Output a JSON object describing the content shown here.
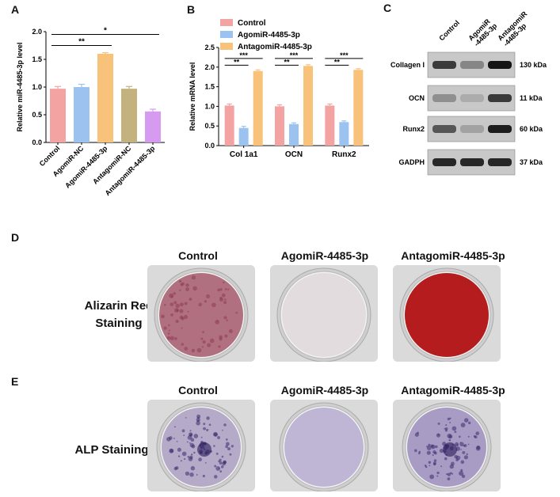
{
  "panels": {
    "a": "A",
    "b": "B",
    "c": "C",
    "d": "D",
    "e": "E"
  },
  "chart_a": {
    "chart_data": {
      "type": "bar",
      "categories": [
        "Control",
        "AgomiR-NC",
        "AgomiR-4485-3p",
        "AntagomiR-NC",
        "AntagomiR-4485-3p"
      ],
      "values": [
        0.97,
        1.0,
        1.6,
        0.97,
        0.56
      ],
      "errors": [
        0.04,
        0.05,
        0.02,
        0.04,
        0.04
      ],
      "colors": [
        "#f4a3a3",
        "#9cc3f0",
        "#f8c27a",
        "#c3b27d",
        "#d69af0"
      ],
      "ylabel": "Relative miR-4485-3p level",
      "ylim": [
        0,
        2.0
      ],
      "yticks": [
        "0.0",
        "0.5",
        "1.0",
        "1.5",
        "2.0"
      ],
      "annotations": [
        {
          "from": 0,
          "to": 2,
          "text": "**"
        },
        {
          "from": 0,
          "to": 4,
          "text": "*"
        }
      ]
    }
  },
  "chart_b": {
    "chart_data": {
      "type": "bar",
      "categories": [
        "Col 1a1",
        "OCN",
        "Runx2"
      ],
      "series": [
        {
          "name": "Control",
          "values": [
            1.02,
            1.0,
            1.02
          ],
          "errors": [
            0.04,
            0.04,
            0.04
          ],
          "color": "#f4a3a3"
        },
        {
          "name": "AgomiR-4485-3p",
          "values": [
            0.45,
            0.55,
            0.6
          ],
          "errors": [
            0.04,
            0.03,
            0.03
          ],
          "color": "#9cc3f0"
        },
        {
          "name": "AntagomiR-4485-3p",
          "values": [
            1.9,
            2.03,
            1.93
          ],
          "errors": [
            0.03,
            0.03,
            0.03
          ],
          "color": "#f8c27a"
        }
      ],
      "ylabel": "Relative mRNA level",
      "ylim": [
        0,
        2.5
      ],
      "yticks": [
        "0.0",
        "0.5",
        "1.0",
        "1.5",
        "2.0",
        "2.5"
      ],
      "legend": "top-left",
      "annotations": [
        {
          "group": 0,
          "from": 0,
          "to": 1,
          "text": "**"
        },
        {
          "group": 0,
          "from": 0,
          "to": 2,
          "text": "***"
        },
        {
          "group": 1,
          "from": 0,
          "to": 1,
          "text": "**"
        },
        {
          "group": 1,
          "from": 0,
          "to": 2,
          "text": "***"
        },
        {
          "group": 2,
          "from": 0,
          "to": 1,
          "text": "**"
        },
        {
          "group": 2,
          "from": 0,
          "to": 2,
          "text": "***"
        }
      ]
    }
  },
  "western": {
    "columns": [
      "Control",
      "AgomiR\n-4485-3p",
      "AntagomiR\n-4485-3p"
    ],
    "rows": [
      {
        "protein": "Collagen I",
        "size": "130 kDa",
        "intensity": [
          0.75,
          0.35,
          0.95
        ]
      },
      {
        "protein": "OCN",
        "size": "11 kDa",
        "intensity": [
          0.3,
          0.15,
          0.75
        ]
      },
      {
        "protein": "Runx2",
        "size": "60 kDa",
        "intensity": [
          0.6,
          0.2,
          0.9
        ]
      },
      {
        "protein": "GADPH",
        "size": "37 kDa",
        "intensity": [
          0.85,
          0.85,
          0.85
        ]
      }
    ]
  },
  "staining": {
    "columns": [
      "Control",
      "AgomiR-4485-3p",
      "AntagomiR-4485-3p"
    ],
    "alizarin_label_1": "Alizarin Red",
    "alizarin_label_2": "Staining",
    "alp_label": "ALP Staining",
    "alizarin_colors": [
      "#b0707f",
      "#e2dcdf",
      "#b51c1e"
    ],
    "alp_colors": [
      "#b5abc8",
      "#bfb6d6",
      "#a99cc4"
    ]
  }
}
